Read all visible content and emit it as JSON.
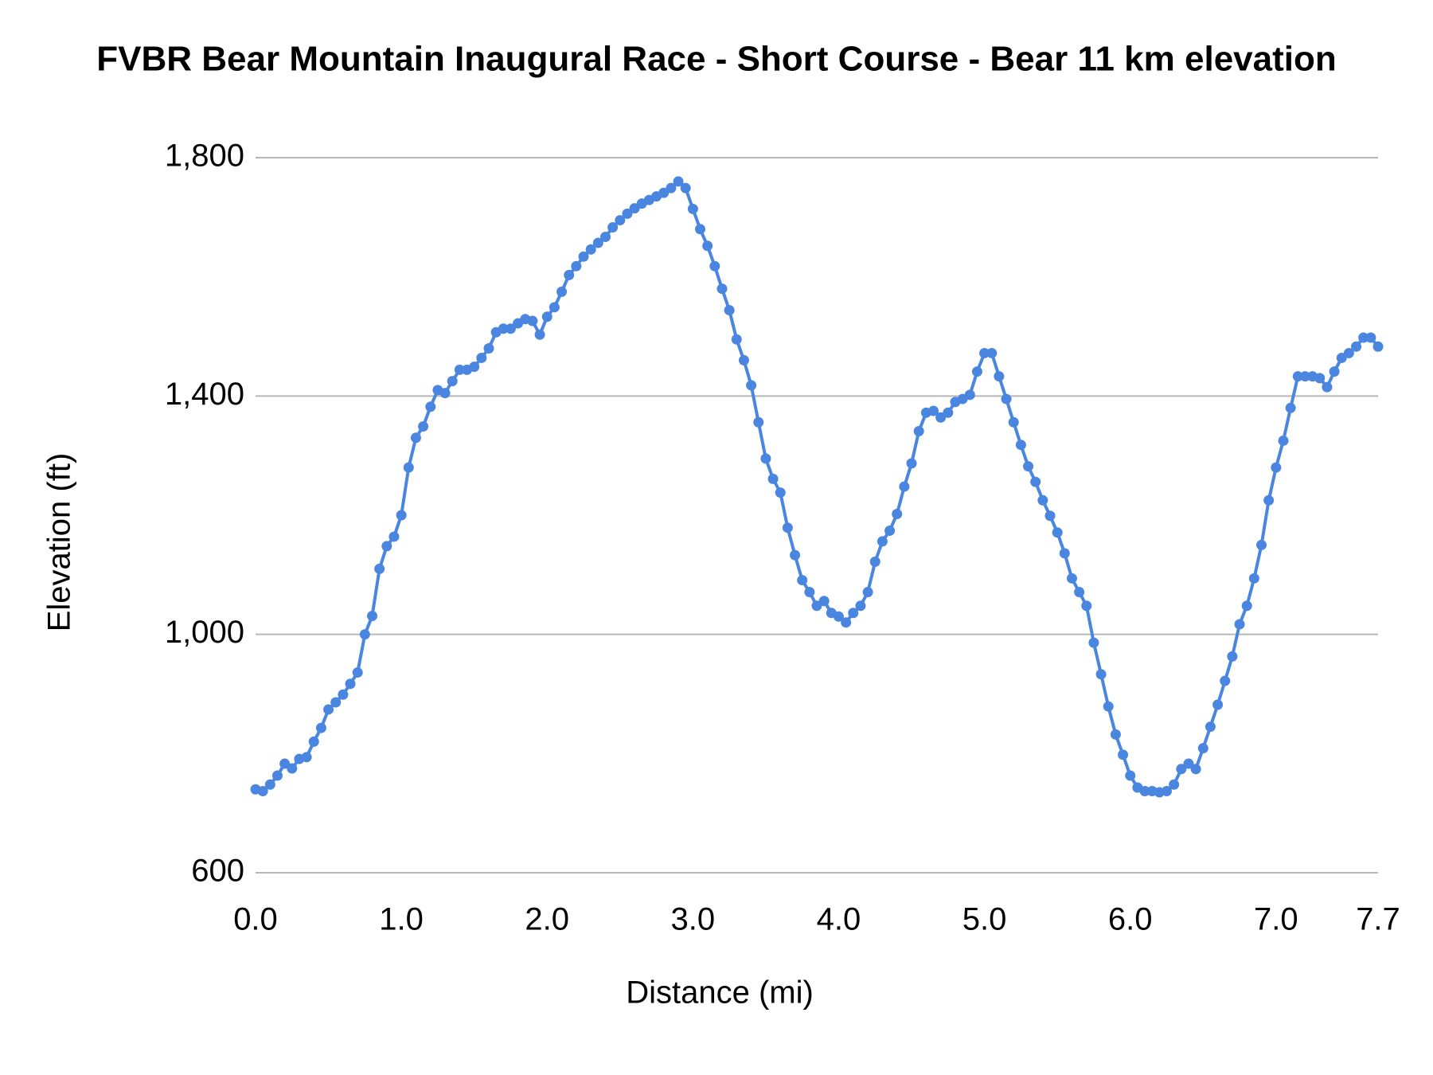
{
  "chart_data": {
    "type": "line",
    "title": "FVBR Bear Mountain Inaugural Race - Short Course - Bear 11 km elevation",
    "x_label": "Distance (mi)",
    "y_label": "Elevation (ft)",
    "color": "#4a86e0",
    "markers": true,
    "grid": true,
    "xlim": [
      0,
      7.7
    ],
    "ylim": [
      600,
      1800
    ],
    "xticks": [
      {
        "value": 0,
        "label": "0.0"
      },
      {
        "value": 1,
        "label": "1.0"
      },
      {
        "value": 2,
        "label": "2.0"
      },
      {
        "value": 3,
        "label": "3.0"
      },
      {
        "value": 4,
        "label": "4.0"
      },
      {
        "value": 5,
        "label": "5.0"
      },
      {
        "value": 6,
        "label": "6.0"
      },
      {
        "value": 7,
        "label": "7.0"
      },
      7.7
    ],
    "yticks": [
      600,
      {
        "value": 1000,
        "label": "1,000"
      },
      {
        "value": 1400,
        "label": "1,400"
      },
      {
        "value": 1800,
        "label": "1,800"
      }
    ],
    "x": [
      0,
      0.05,
      0.1,
      0.15,
      0.2,
      0.25,
      0.3,
      0.35,
      0.4,
      0.45,
      0.5,
      0.55,
      0.6,
      0.65,
      0.7,
      0.75,
      0.8,
      0.85,
      0.9,
      0.95,
      1.0,
      1.05,
      1.1,
      1.15,
      1.2,
      1.25,
      1.3,
      1.35,
      1.4,
      1.45,
      1.5,
      1.55,
      1.6,
      1.65,
      1.7,
      1.75,
      1.8,
      1.85,
      1.9,
      1.95,
      2.0,
      2.05,
      2.1,
      2.15,
      2.2,
      2.25,
      2.3,
      2.35,
      2.4,
      2.45,
      2.5,
      2.55,
      2.6,
      2.65,
      2.7,
      2.75,
      2.8,
      2.85,
      2.9,
      2.95,
      3.0,
      3.05,
      3.1,
      3.15,
      3.2,
      3.25,
      3.3,
      3.35,
      3.4,
      3.45,
      3.5,
      3.55,
      3.6,
      3.65,
      3.7,
      3.75,
      3.8,
      3.85,
      3.9,
      3.95,
      4.0,
      4.05,
      4.1,
      4.15,
      4.2,
      4.25,
      4.3,
      4.35,
      4.4,
      4.45,
      4.5,
      4.55,
      4.6,
      4.65,
      4.7,
      4.75,
      4.8,
      4.85,
      4.9,
      4.95,
      5.0,
      5.05,
      5.1,
      5.15,
      5.2,
      5.25,
      5.3,
      5.35,
      5.4,
      5.45,
      5.5,
      5.55,
      5.6,
      5.65,
      5.7,
      5.75,
      5.8,
      5.85,
      5.9,
      5.95,
      6.0,
      6.05,
      6.1,
      6.15,
      6.2,
      6.25,
      6.3,
      6.35,
      6.4,
      6.45,
      6.5,
      6.55,
      6.6,
      6.65,
      6.7,
      6.75,
      6.8,
      6.85,
      6.9,
      6.95,
      7.0,
      7.05,
      7.1,
      7.15,
      7.2,
      7.25,
      7.3,
      7.35,
      7.4,
      7.45,
      7.5,
      7.55,
      7.6,
      7.65,
      7.7
    ],
    "values": [
      740,
      737,
      748,
      763,
      783,
      775,
      791,
      794,
      820,
      843,
      874,
      886,
      899,
      917,
      936,
      1000,
      1031,
      1110,
      1148,
      1164,
      1200,
      1280,
      1330,
      1349,
      1382,
      1410,
      1405,
      1425,
      1444,
      1444,
      1449,
      1464,
      1480,
      1507,
      1513,
      1513,
      1522,
      1529,
      1526,
      1503,
      1533,
      1549,
      1575,
      1603,
      1618,
      1634,
      1646,
      1657,
      1667,
      1683,
      1695,
      1706,
      1715,
      1723,
      1729,
      1735,
      1741,
      1749,
      1760,
      1749,
      1714,
      1680,
      1652,
      1618,
      1580,
      1544,
      1495,
      1460,
      1418,
      1356,
      1295,
      1261,
      1238,
      1179,
      1133,
      1091,
      1071,
      1048,
      1056,
      1036,
      1030,
      1020,
      1036,
      1048,
      1071,
      1122,
      1156,
      1174,
      1202,
      1248,
      1287,
      1341,
      1372,
      1375,
      1364,
      1372,
      1390,
      1395,
      1402,
      1441,
      1472,
      1472,
      1433,
      1395,
      1356,
      1318,
      1282,
      1256,
      1225,
      1199,
      1171,
      1136,
      1094,
      1071,
      1048,
      986,
      933,
      879,
      832,
      798,
      763,
      743,
      737,
      737,
      735,
      737,
      748,
      774,
      783,
      774,
      809,
      845,
      882,
      922,
      963,
      1017,
      1048,
      1094,
      1150,
      1225,
      1280,
      1325,
      1380,
      1433,
      1433,
      1433,
      1430,
      1415,
      1441,
      1464,
      1472,
      1483,
      1498,
      1498,
      1483
    ]
  }
}
